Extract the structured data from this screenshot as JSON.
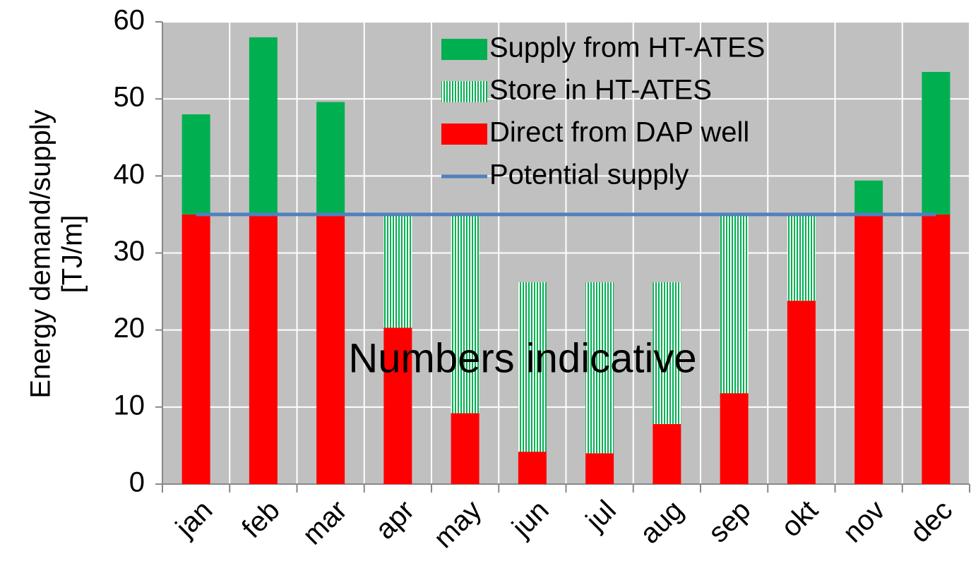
{
  "chart_data": {
    "type": "bar",
    "stacked": true,
    "annotation": "Numbers indicative",
    "y_label": [
      "Energy demand/supply",
      "[TJ/m]"
    ],
    "categories": [
      "jan",
      "feb",
      "mar",
      "apr",
      "may",
      "jun",
      "jul",
      "aug",
      "sep",
      "okt",
      "nov",
      "dec"
    ],
    "series": [
      {
        "name": "Direct from DAP well",
        "color": "#ff0000",
        "values": [
          35,
          35,
          35,
          20.3,
          9.2,
          4.2,
          4,
          7.8,
          11.8,
          23.8,
          35,
          35
        ]
      },
      {
        "name": "Store in HT-ATES",
        "color": "#00b050",
        "pattern": "vertical-stripes",
        "values": [
          0,
          0,
          0,
          14.7,
          25.8,
          22,
          22.2,
          18.4,
          23.2,
          11.2,
          0,
          0
        ]
      },
      {
        "name": "Supply from HT-ATES",
        "color": "#00b050",
        "values": [
          13,
          23,
          14.6,
          0,
          0,
          0,
          0,
          0,
          0,
          0,
          4.4,
          18.5
        ]
      },
      {
        "name": "Potential supply",
        "kind": "line",
        "color": "#4f81bd",
        "values": [
          35,
          35,
          35,
          35,
          35,
          35,
          35,
          35,
          35,
          35,
          35,
          35
        ]
      }
    ],
    "legend_order": [
      2,
      1,
      0,
      3
    ],
    "ylim": [
      0,
      60
    ],
    "yticks": [
      0,
      10,
      20,
      30,
      40,
      50,
      60
    ],
    "grid": true
  }
}
